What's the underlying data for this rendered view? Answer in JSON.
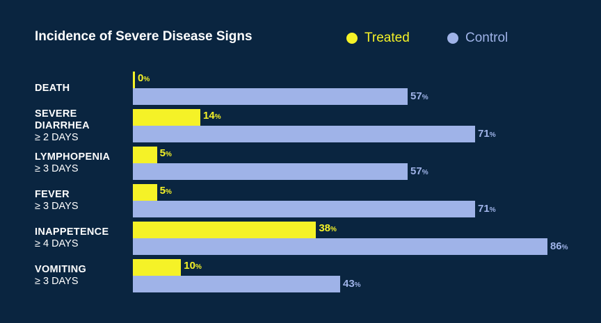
{
  "chart_data": {
    "type": "bar",
    "orientation": "horizontal",
    "title": "Incidence of Severe Disease Signs",
    "categories": [
      {
        "label": "DEATH",
        "sublabel": ""
      },
      {
        "label": "SEVERE DIARRHEA",
        "sublabel": "≥ 2 DAYS"
      },
      {
        "label": "LYMPHOPENIA",
        "sublabel": "≥ 3 DAYS"
      },
      {
        "label": "FEVER",
        "sublabel": "≥ 3 DAYS"
      },
      {
        "label": "INAPPETENCE",
        "sublabel": "≥ 4 DAYS"
      },
      {
        "label": "VOMITING",
        "sublabel": "≥ 3 DAYS"
      }
    ],
    "series": [
      {
        "name": "Treated",
        "color": "#f5f227",
        "values": [
          0,
          14,
          5,
          5,
          38,
          10
        ]
      },
      {
        "name": "Control",
        "color": "#9fb3e8",
        "values": [
          57,
          71,
          57,
          71,
          86,
          43
        ]
      }
    ],
    "value_unit": "%",
    "xlim": [
      0,
      100
    ],
    "grid": false,
    "legend_position": "top-right"
  }
}
